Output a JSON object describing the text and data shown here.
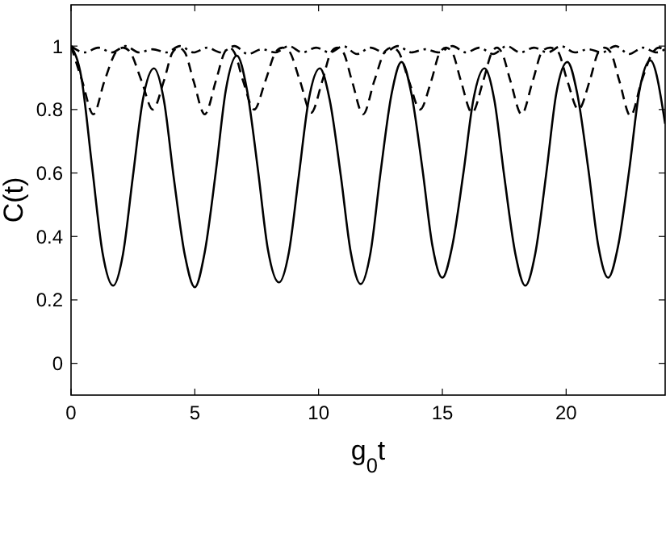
{
  "chart_data": {
    "type": "line",
    "xlabel": "g$_{0}$t",
    "ylabel": "C(t)",
    "xlim": [
      0,
      24
    ],
    "ylim": [
      -0.1,
      1.13
    ],
    "xticks": [
      0,
      5,
      10,
      15,
      20
    ],
    "yticks": [
      0,
      0.2,
      0.4,
      0.6,
      0.8,
      1
    ],
    "grid": false,
    "series": [
      {
        "color": "#000000",
        "line_style": "solid",
        "x": [
          0,
          0.42,
          0.85,
          1.27,
          1.7,
          2.1,
          2.5,
          2.9,
          3.35,
          3.75,
          4.15,
          4.6,
          5.0,
          5.4,
          5.85,
          6.25,
          6.7,
          7.1,
          7.55,
          7.95,
          8.4,
          8.8,
          9.2,
          9.6,
          10.05,
          10.45,
          10.9,
          11.3,
          11.7,
          12.1,
          12.5,
          12.95,
          13.35,
          13.75,
          14.2,
          14.6,
          15.0,
          15.4,
          15.85,
          16.25,
          16.7,
          17.1,
          17.5,
          17.95,
          18.35,
          18.75,
          19.2,
          19.6,
          20.05,
          20.45,
          20.9,
          21.3,
          21.7,
          22.1,
          22.55,
          22.95,
          23.4,
          24
        ],
        "values": [
          1.0,
          0.9,
          0.62,
          0.35,
          0.245,
          0.345,
          0.59,
          0.83,
          0.93,
          0.83,
          0.585,
          0.34,
          0.24,
          0.35,
          0.605,
          0.86,
          0.97,
          0.865,
          0.61,
          0.36,
          0.255,
          0.35,
          0.59,
          0.83,
          0.93,
          0.83,
          0.59,
          0.35,
          0.25,
          0.35,
          0.6,
          0.85,
          0.95,
          0.85,
          0.61,
          0.37,
          0.27,
          0.37,
          0.6,
          0.83,
          0.93,
          0.83,
          0.59,
          0.345,
          0.245,
          0.345,
          0.6,
          0.85,
          0.95,
          0.85,
          0.61,
          0.37,
          0.27,
          0.37,
          0.61,
          0.855,
          0.955,
          0.755
        ]
      },
      {
        "color": "#000000",
        "line_style": "dashed",
        "x": [
          0,
          0.45,
          0.9,
          1.35,
          1.85,
          2.1,
          2.35,
          2.85,
          3.3,
          3.75,
          4.1,
          4.35,
          4.6,
          4.95,
          5.4,
          5.85,
          6.2,
          6.4,
          6.6,
          6.95,
          7.4,
          7.85,
          8.3,
          8.55,
          8.8,
          9.25,
          9.7,
          10.15,
          10.5,
          10.75,
          11.0,
          11.35,
          11.8,
          12.25,
          12.7,
          12.95,
          13.2,
          13.65,
          14.1,
          14.55,
          14.9,
          15.15,
          15.4,
          15.75,
          16.2,
          16.65,
          17.0,
          17.2,
          17.4,
          17.75,
          18.2,
          18.65,
          19.05,
          19.35,
          19.65,
          20.05,
          20.5,
          20.95,
          21.3,
          21.55,
          21.8,
          22.15,
          22.6,
          23.05,
          23.5,
          23.75,
          24
        ],
        "values": [
          1.0,
          0.89,
          0.785,
          0.89,
          0.985,
          0.995,
          0.985,
          0.89,
          0.8,
          0.89,
          0.98,
          0.995,
          0.98,
          0.89,
          0.785,
          0.89,
          0.98,
          0.995,
          0.98,
          0.89,
          0.8,
          0.89,
          0.985,
          0.995,
          0.985,
          0.89,
          0.79,
          0.89,
          0.98,
          0.995,
          0.98,
          0.89,
          0.785,
          0.89,
          0.985,
          0.995,
          0.985,
          0.89,
          0.8,
          0.89,
          0.98,
          0.995,
          0.98,
          0.89,
          0.79,
          0.89,
          0.98,
          0.995,
          0.98,
          0.89,
          0.785,
          0.89,
          0.985,
          0.995,
          0.985,
          0.89,
          0.8,
          0.89,
          0.98,
          0.995,
          0.98,
          0.89,
          0.78,
          0.89,
          0.98,
          0.995,
          0.985
        ]
      },
      {
        "color": "#000000",
        "line_style": "dashdot",
        "x": [
          0,
          0.55,
          1.1,
          1.65,
          2.2,
          2.75,
          3.3,
          3.85,
          4.4,
          4.95,
          5.5,
          6.05,
          6.6,
          7.15,
          7.7,
          8.25,
          8.8,
          9.35,
          9.9,
          10.45,
          11.0,
          11.55,
          12.1,
          12.65,
          13.2,
          13.75,
          14.3,
          14.85,
          15.4,
          15.95,
          16.5,
          17.05,
          17.6,
          18.15,
          18.7,
          19.25,
          19.8,
          20.35,
          20.9,
          21.45,
          22.0,
          22.55,
          23.1,
          23.65,
          24
        ],
        "values": [
          1.0,
          0.98,
          0.995,
          0.98,
          1.0,
          0.98,
          0.99,
          0.98,
          1.0,
          0.98,
          0.995,
          0.98,
          1.0,
          0.975,
          0.99,
          0.98,
          1.0,
          0.98,
          0.995,
          0.98,
          1.0,
          0.975,
          0.995,
          0.98,
          1.0,
          0.98,
          0.99,
          0.98,
          1.0,
          0.98,
          0.995,
          0.975,
          1.0,
          0.98,
          0.995,
          0.98,
          1.0,
          0.98,
          0.99,
          0.98,
          1.0,
          0.975,
          0.995,
          0.98,
          0.99
        ]
      }
    ]
  }
}
